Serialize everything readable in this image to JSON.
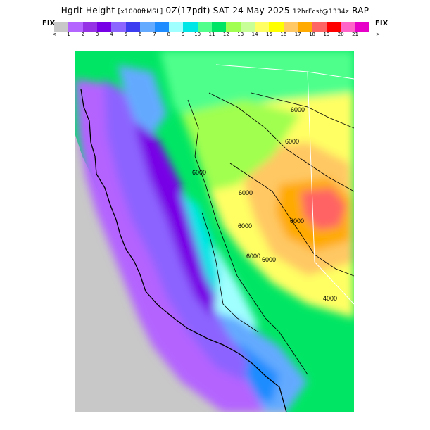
{
  "header": {
    "title_main": "Hgrlt Height",
    "title_units": "[x1000ftMSL]",
    "title_time": "0Z(17pdt) SAT 24 May 2025",
    "title_fcst": "12hrFcst@1334z",
    "title_model": "RAP"
  },
  "legend": {
    "fix_left": "FIX",
    "fix_right": "FIX",
    "less_than": "<",
    "greater_than": ">",
    "tick_labels": [
      "1",
      "2",
      "3",
      "4",
      "5",
      "6",
      "7",
      "8",
      "9",
      "10",
      "11",
      "12",
      "13",
      "14",
      "15",
      "16",
      "17",
      "18",
      "19",
      "20",
      "21"
    ],
    "colors": [
      "#c8c8c8",
      "#b464ff",
      "#9632e6",
      "#7800e6",
      "#8c64ff",
      "#3c3cf0",
      "#64aaff",
      "#1e8cff",
      "#a0ffff",
      "#00e6e6",
      "#50ff8c",
      "#00e664",
      "#a0ff50",
      "#c8ff96",
      "#ffff64",
      "#ffff00",
      "#ffc864",
      "#ffaa00",
      "#ff6464",
      "#ff0000",
      "#ff64c8",
      "#e600c8"
    ]
  },
  "map": {
    "contour_labels": [
      "6000",
      "6000",
      "6000",
      "6000",
      "6000",
      "6000",
      "6000",
      "4000",
      "6000"
    ]
  }
}
